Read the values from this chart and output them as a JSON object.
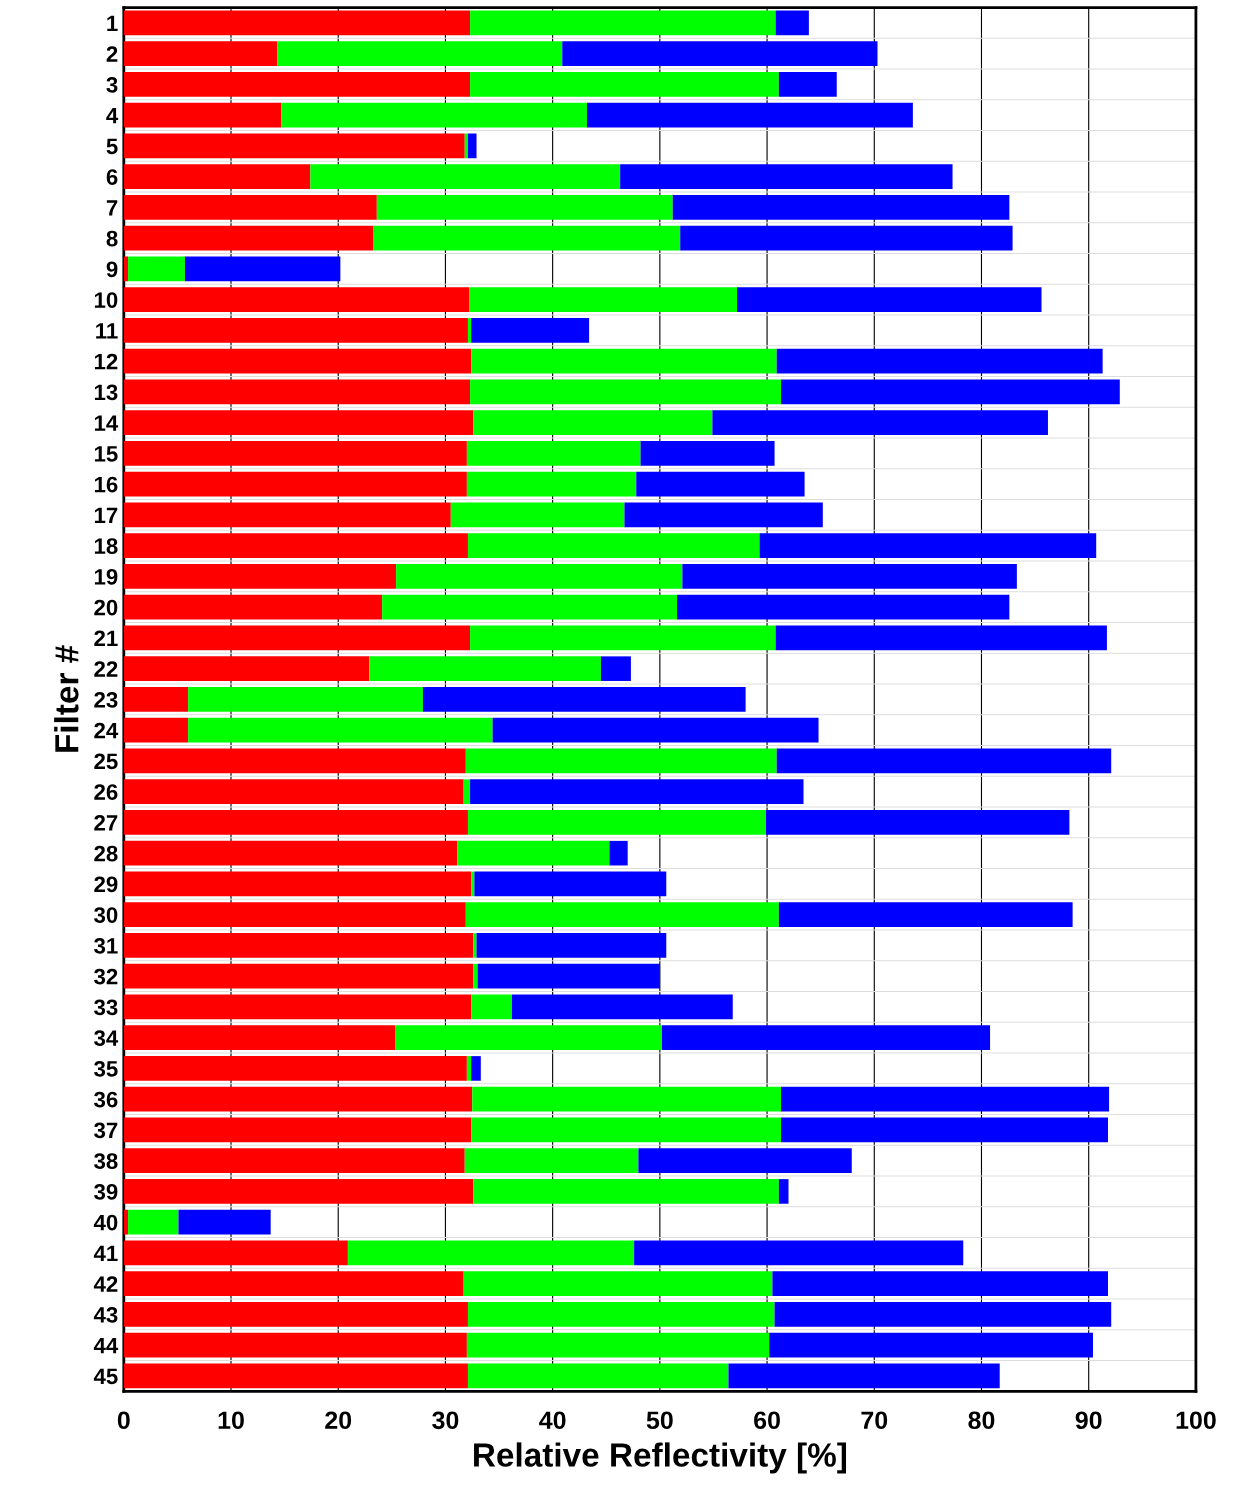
{
  "chart_data": {
    "type": "bar",
    "orientation": "horizontal",
    "stacked": true,
    "xlabel": "Relative Reflectivity [%]",
    "ylabel": "Filter #",
    "categories": [
      "1",
      "2",
      "3",
      "4",
      "5",
      "6",
      "7",
      "8",
      "9",
      "10",
      "11",
      "12",
      "13",
      "14",
      "15",
      "16",
      "17",
      "18",
      "19",
      "20",
      "21",
      "22",
      "23",
      "24",
      "25",
      "26",
      "27",
      "28",
      "29",
      "30",
      "31",
      "32",
      "33",
      "34",
      "35",
      "36",
      "37",
      "38",
      "39",
      "40",
      "41",
      "42",
      "43",
      "44",
      "45"
    ],
    "series": [
      {
        "color": "#ff0000",
        "values": [
          32.3,
          14.3,
          32.3,
          14.7,
          31.8,
          17.4,
          23.6,
          23.3,
          0.4,
          32.2,
          32.1,
          32.4,
          32.3,
          32.6,
          32.0,
          32.0,
          30.5,
          32.1,
          25.4,
          24.1,
          32.3,
          22.9,
          6.0,
          6.0,
          31.9,
          31.7,
          32.1,
          31.1,
          32.4,
          31.9,
          32.6,
          32.6,
          32.4,
          25.3,
          32.0,
          32.5,
          32.4,
          31.8,
          32.6,
          0.4,
          20.9,
          31.7,
          32.1,
          32.0,
          32.1
        ]
      },
      {
        "color": "#00ff00",
        "values": [
          28.5,
          26.6,
          28.8,
          28.5,
          0.3,
          28.9,
          27.6,
          28.6,
          5.3,
          25.0,
          0.3,
          28.5,
          29.0,
          22.3,
          16.2,
          15.8,
          16.2,
          27.2,
          26.7,
          27.5,
          28.5,
          21.6,
          21.9,
          28.4,
          29.0,
          0.6,
          27.8,
          14.2,
          0.3,
          29.2,
          0.3,
          0.4,
          3.8,
          24.9,
          0.4,
          28.8,
          28.9,
          16.2,
          28.5,
          4.7,
          26.7,
          28.8,
          28.6,
          28.2,
          24.3
        ]
      },
      {
        "color": "#0000ff",
        "values": [
          3.1,
          29.4,
          5.4,
          30.4,
          0.8,
          31.0,
          31.4,
          31.0,
          14.5,
          28.4,
          11.0,
          30.4,
          31.6,
          31.3,
          12.5,
          15.7,
          18.5,
          31.4,
          31.2,
          31.0,
          30.9,
          2.8,
          30.1,
          30.4,
          31.2,
          31.1,
          28.3,
          1.7,
          17.9,
          27.4,
          17.7,
          17.0,
          20.6,
          30.6,
          0.9,
          30.6,
          30.5,
          19.9,
          0.9,
          8.6,
          30.7,
          31.3,
          31.4,
          30.2,
          25.3
        ]
      }
    ],
    "xlim": [
      0,
      100
    ],
    "xticks": [
      0,
      10,
      20,
      30,
      40,
      50,
      60,
      70,
      80,
      90,
      100
    ],
    "grid": "x"
  }
}
